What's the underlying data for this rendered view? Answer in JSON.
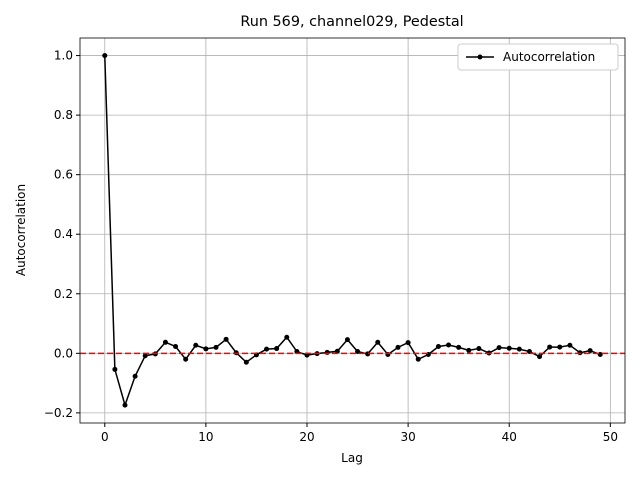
{
  "chart_data": {
    "type": "line",
    "title": "Run 569, channel029, Pedestal",
    "xlabel": "Lag",
    "ylabel": "Autocorrelation",
    "x": [
      0,
      1,
      2,
      3,
      4,
      5,
      6,
      7,
      8,
      9,
      10,
      11,
      12,
      13,
      14,
      15,
      16,
      17,
      18,
      19,
      20,
      21,
      22,
      23,
      24,
      25,
      26,
      27,
      28,
      29,
      30,
      31,
      32,
      33,
      34,
      35,
      36,
      37,
      38,
      39,
      40,
      41,
      42,
      43,
      44,
      45,
      46,
      47,
      48,
      49
    ],
    "series": [
      {
        "name": "Autocorrelation",
        "color": "#000000",
        "values": [
          1.0,
          -0.054,
          -0.174,
          -0.077,
          -0.008,
          -0.002,
          0.037,
          0.023,
          -0.02,
          0.027,
          0.015,
          0.02,
          0.047,
          0.002,
          -0.03,
          -0.005,
          0.014,
          0.016,
          0.054,
          0.006,
          -0.006,
          -0.001,
          0.003,
          0.007,
          0.046,
          0.006,
          -0.002,
          0.037,
          -0.004,
          0.02,
          0.036,
          -0.02,
          -0.004,
          0.023,
          0.028,
          0.02,
          0.01,
          0.016,
          0.001,
          0.019,
          0.017,
          0.014,
          0.006,
          -0.011,
          0.021,
          0.021,
          0.027,
          0.002,
          0.009,
          -0.004
        ]
      }
    ],
    "xlim": [
      -2.45,
      51.45
    ],
    "xticks": [
      0,
      10,
      20,
      30,
      40,
      50
    ],
    "ylim": [
      -0.234,
      1.059
    ],
    "yticks": [
      {
        "value": -0.2,
        "label": "−0.2"
      },
      {
        "value": 0,
        "label": "0.0"
      },
      {
        "value": 0.2,
        "label": "0.2"
      },
      {
        "value": 0.4,
        "label": "0.4"
      },
      {
        "value": 0.6,
        "label": "0.6"
      },
      {
        "value": 0.8,
        "label": "0.8"
      },
      {
        "value": 1.0,
        "label": "1.0"
      }
    ],
    "hline": {
      "value": 0,
      "color": "#ff0000"
    },
    "grid": true,
    "legend": "upper right"
  }
}
